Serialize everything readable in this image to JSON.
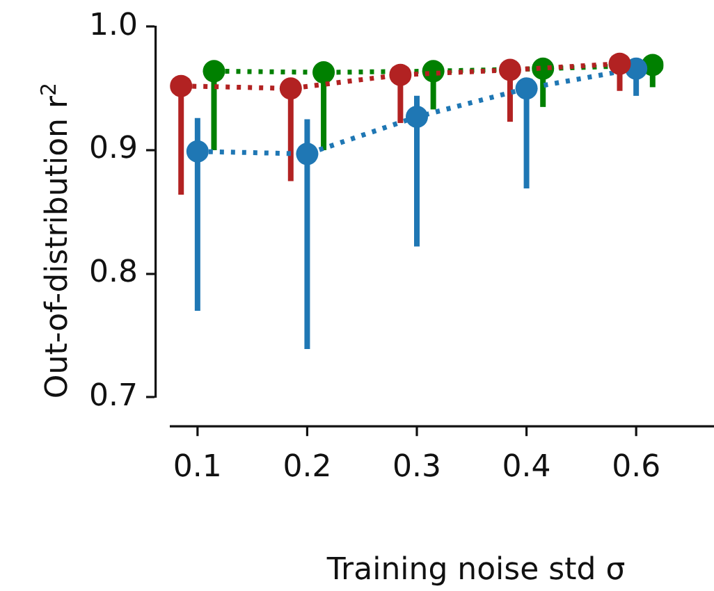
{
  "chart_data": {
    "type": "line",
    "xlabel": "Training noise std σ",
    "ylabel": "Out-of-distribution r$^{2}$",
    "categories": [
      "0.1",
      "0.2",
      "0.3",
      "0.4",
      "0.6"
    ],
    "series": [
      {
        "color": "#b22222",
        "values": [
          0.952,
          0.95,
          0.961,
          0.965,
          0.97
        ],
        "errors": [
          [
            0.864,
            0.952
          ],
          [
            0.875,
            0.95
          ],
          [
            0.922,
            0.961
          ],
          [
            0.923,
            0.965
          ],
          [
            0.948,
            0.97
          ]
        ]
      },
      {
        "color": "#1f77b4",
        "values": [
          0.899,
          0.897,
          0.927,
          0.95,
          0.966
        ],
        "errors": [
          [
            0.77,
            0.926
          ],
          [
            0.739,
            0.925
          ],
          [
            0.822,
            0.944
          ],
          [
            0.869,
            0.95
          ],
          [
            0.944,
            0.966
          ]
        ]
      },
      {
        "color": "#008000",
        "values": [
          0.964,
          0.963,
          0.964,
          0.966,
          0.969
        ],
        "errors": [
          [
            0.9,
            0.964
          ],
          [
            0.9,
            0.963
          ],
          [
            0.933,
            0.964
          ],
          [
            0.935,
            0.966
          ],
          [
            0.951,
            0.969
          ]
        ]
      }
    ],
    "ylim": [
      0.7,
      1.0
    ],
    "yticks": [
      0.7,
      0.8,
      0.9,
      {
        "value": 1.0,
        "label": "1.0"
      }
    ],
    "grid": false,
    "legend": false,
    "marker": "circle",
    "line_style": "dotted"
  }
}
